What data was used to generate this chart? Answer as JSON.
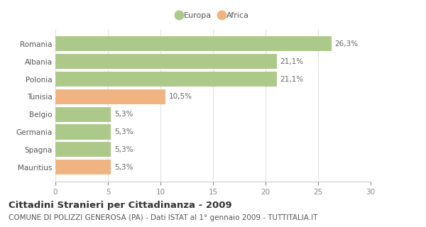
{
  "categories": [
    "Romania",
    "Albania",
    "Polonia",
    "Tunisia",
    "Belgio",
    "Germania",
    "Spagna",
    "Mauritius"
  ],
  "values": [
    26.3,
    21.1,
    21.1,
    10.5,
    5.3,
    5.3,
    5.3,
    5.3
  ],
  "labels": [
    "26,3%",
    "21,1%",
    "21,1%",
    "10,5%",
    "5,3%",
    "5,3%",
    "5,3%",
    "5,3%"
  ],
  "colors": [
    "#adc98a",
    "#adc98a",
    "#adc98a",
    "#f0b482",
    "#adc98a",
    "#adc98a",
    "#adc98a",
    "#f0b482"
  ],
  "continent": [
    "Europa",
    "Europa",
    "Europa",
    "Africa",
    "Europa",
    "Europa",
    "Europa",
    "Africa"
  ],
  "europa_color": "#adc98a",
  "africa_color": "#f0b482",
  "xlim": [
    0,
    30
  ],
  "xticks": [
    0,
    5,
    10,
    15,
    20,
    25,
    30
  ],
  "title": "Cittadini Stranieri per Cittadinanza - 2009",
  "subtitle": "COMUNE DI POLIZZI GENEROSA (PA) - Dati ISTAT al 1° gennaio 2009 - TUTTITALIA.IT",
  "title_fontsize": 9.5,
  "subtitle_fontsize": 7.5,
  "label_fontsize": 7.5,
  "tick_fontsize": 7.5,
  "background_color": "#ffffff",
  "grid_color": "#e0e0e0"
}
